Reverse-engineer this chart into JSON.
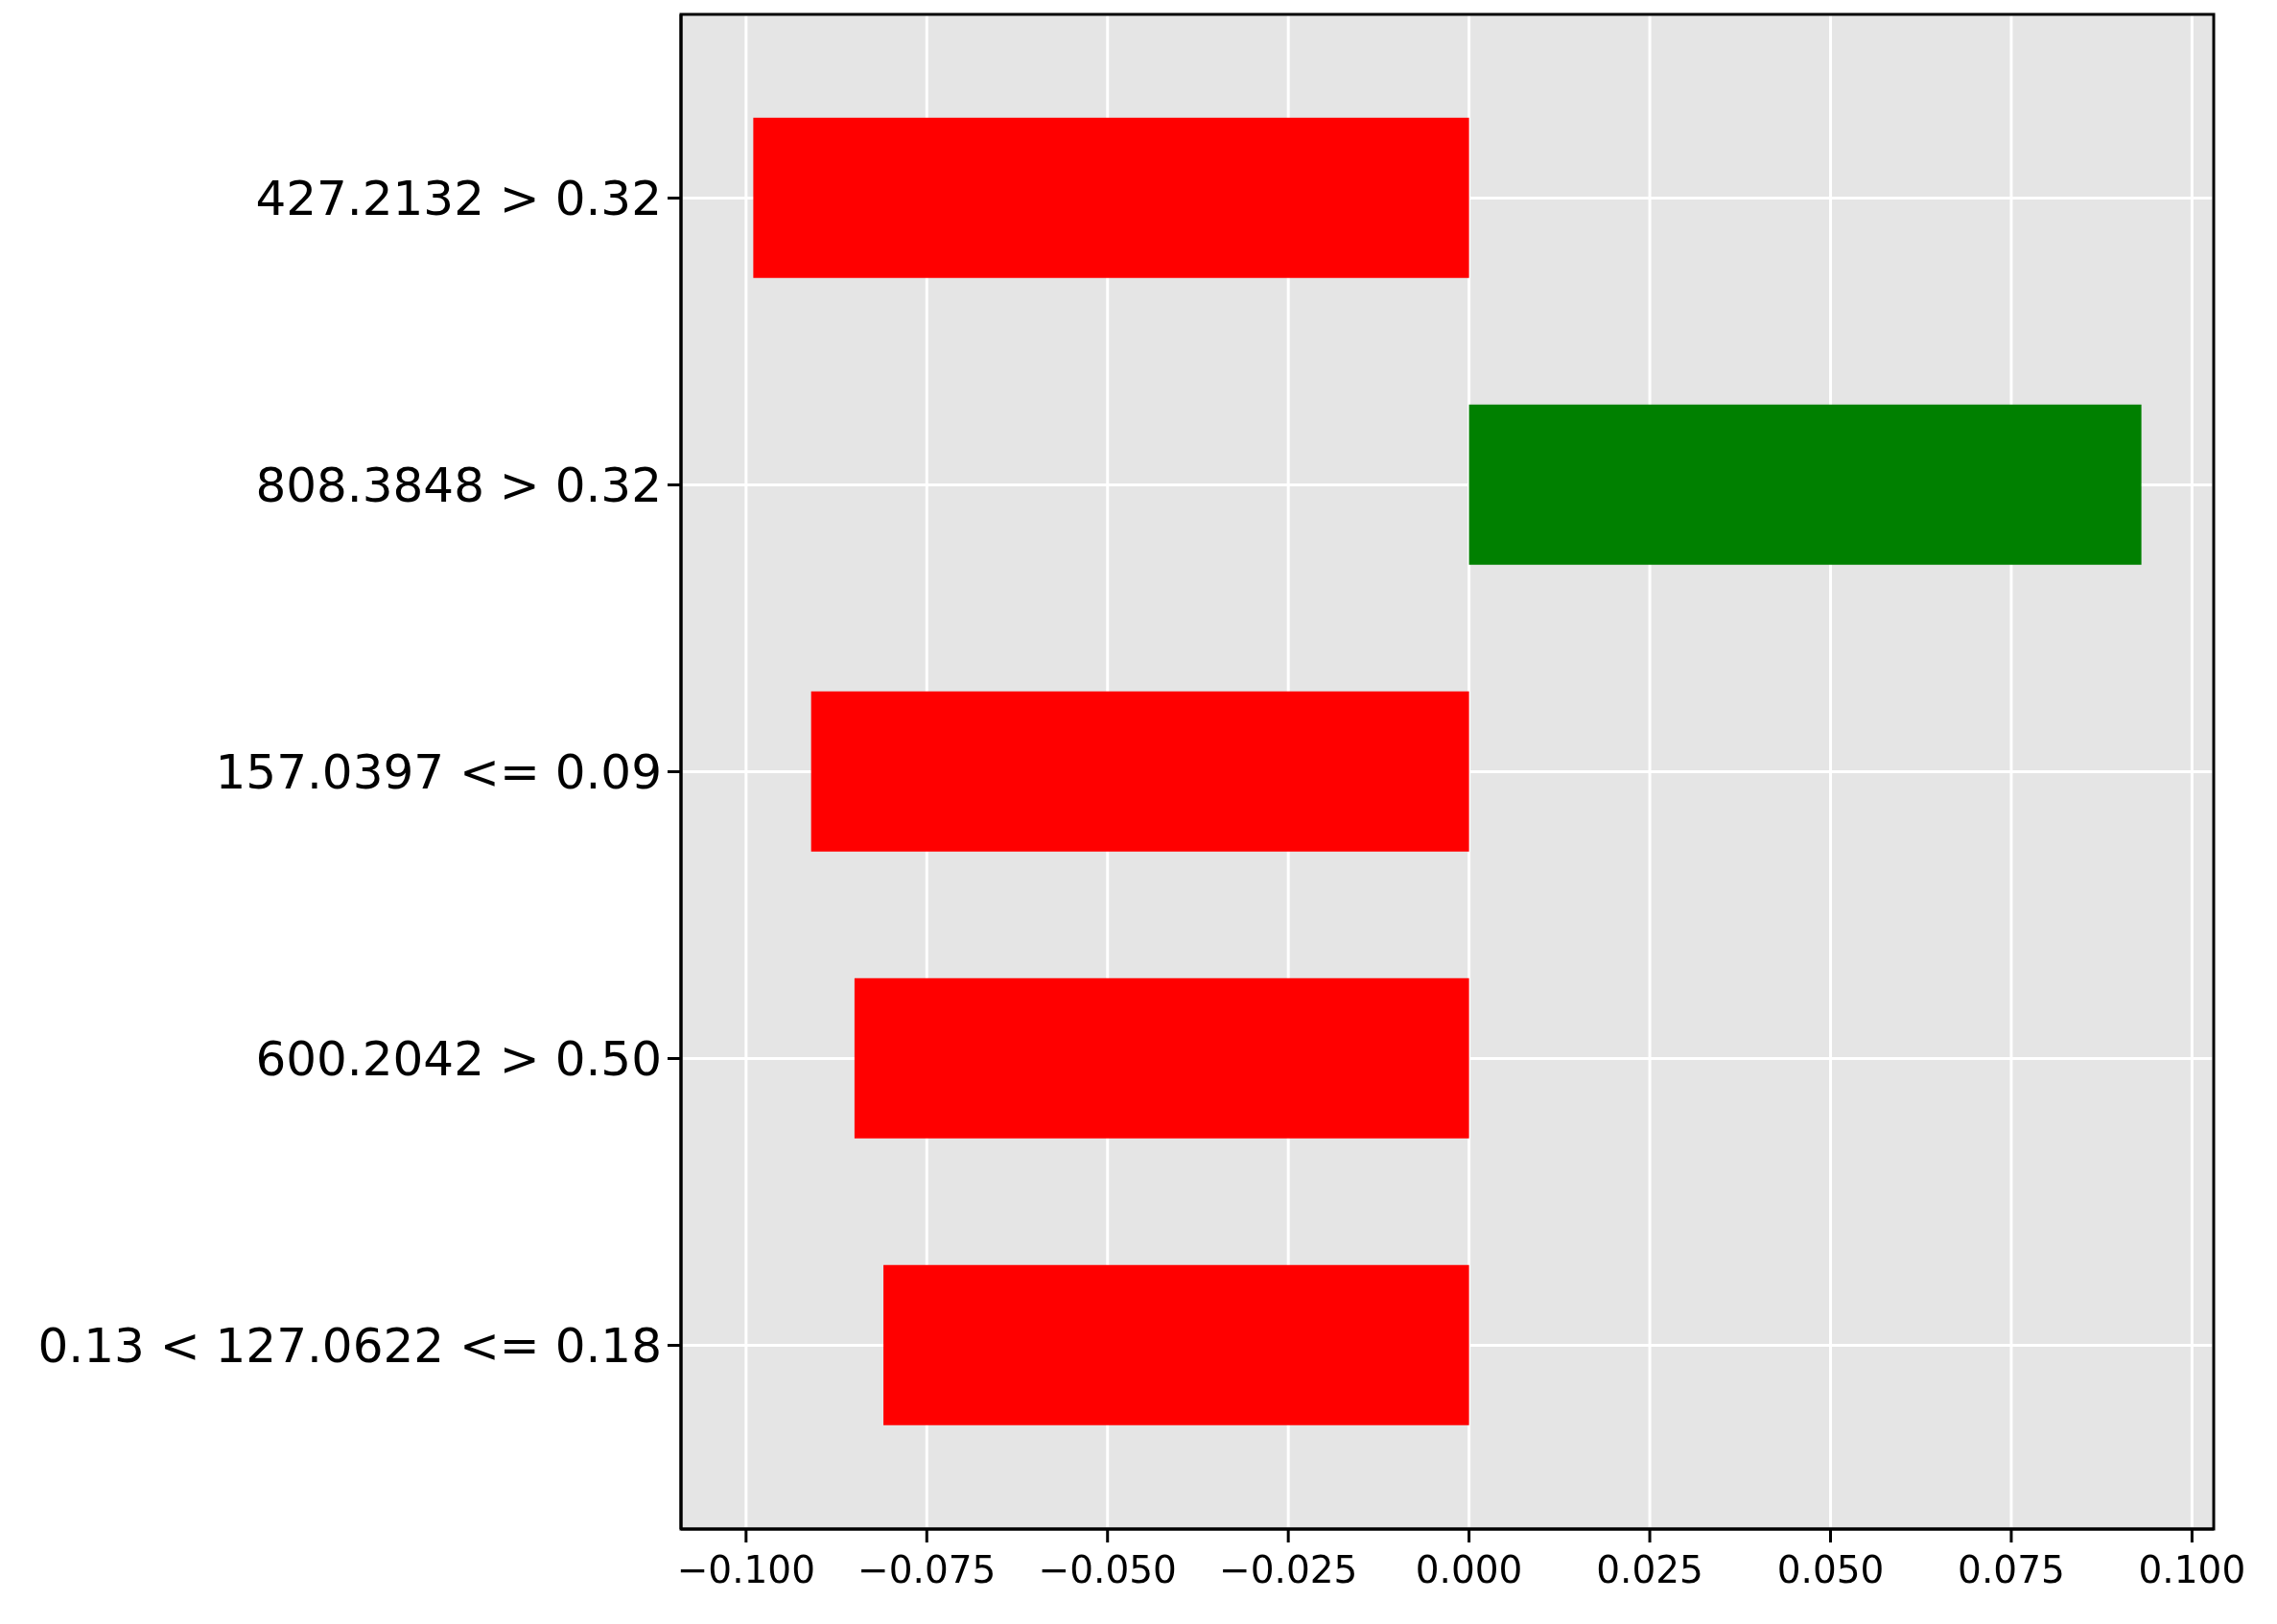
{
  "chart_data": {
    "type": "bar",
    "orientation": "horizontal",
    "categories": [
      "427.2132 > 0.32",
      "808.3848 > 0.32",
      "157.0397 <= 0.09",
      "600.2042 > 0.50",
      "0.13 < 127.0622 <= 0.18"
    ],
    "values": [
      -0.099,
      0.093,
      -0.091,
      -0.085,
      -0.081
    ],
    "colors": [
      "#ff0000",
      "#008000",
      "#ff0000",
      "#ff0000",
      "#ff0000"
    ],
    "xlim": [
      -0.109,
      0.103
    ],
    "xticks": [
      {
        "value": -0.1,
        "label": "−0.100"
      },
      {
        "value": -0.075,
        "label": "−0.075"
      },
      {
        "value": -0.05,
        "label": "−0.050"
      },
      {
        "value": -0.025,
        "label": "−0.025"
      },
      {
        "value": 0,
        "label": "0.000"
      },
      {
        "value": 0.025,
        "label": "0.025"
      },
      {
        "value": 0.05,
        "label": "0.050"
      },
      {
        "value": 0.075,
        "label": "0.075"
      },
      {
        "value": 0.1,
        "label": "0.100"
      }
    ],
    "grid": true
  }
}
